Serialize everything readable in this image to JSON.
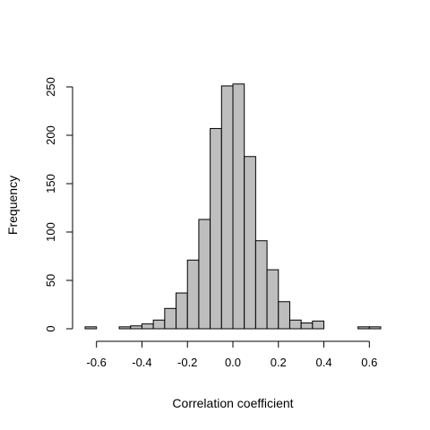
{
  "chart_data": {
    "type": "histogram",
    "title": "",
    "xlabel": "Correlation coefficient",
    "ylabel": "Frequency",
    "bin_width": 0.05,
    "bins": [
      {
        "start": -0.65,
        "end": -0.6,
        "count": 2
      },
      {
        "start": -0.6,
        "end": -0.55,
        "count": 0
      },
      {
        "start": -0.55,
        "end": -0.5,
        "count": 0
      },
      {
        "start": -0.5,
        "end": -0.45,
        "count": 2
      },
      {
        "start": -0.45,
        "end": -0.4,
        "count": 3
      },
      {
        "start": -0.4,
        "end": -0.35,
        "count": 5
      },
      {
        "start": -0.35,
        "end": -0.3,
        "count": 9
      },
      {
        "start": -0.3,
        "end": -0.25,
        "count": 21
      },
      {
        "start": -0.25,
        "end": -0.2,
        "count": 37
      },
      {
        "start": -0.2,
        "end": -0.15,
        "count": 71
      },
      {
        "start": -0.15,
        "end": -0.1,
        "count": 113
      },
      {
        "start": -0.1,
        "end": -0.05,
        "count": 207
      },
      {
        "start": -0.05,
        "end": 0.0,
        "count": 251
      },
      {
        "start": 0.0,
        "end": 0.05,
        "count": 253
      },
      {
        "start": 0.05,
        "end": 0.1,
        "count": 178
      },
      {
        "start": 0.1,
        "end": 0.15,
        "count": 91
      },
      {
        "start": 0.15,
        "end": 0.2,
        "count": 61
      },
      {
        "start": 0.2,
        "end": 0.25,
        "count": 28
      },
      {
        "start": 0.25,
        "end": 0.3,
        "count": 9
      },
      {
        "start": 0.3,
        "end": 0.35,
        "count": 6
      },
      {
        "start": 0.35,
        "end": 0.4,
        "count": 8
      },
      {
        "start": 0.4,
        "end": 0.45,
        "count": 0
      },
      {
        "start": 0.45,
        "end": 0.5,
        "count": 0
      },
      {
        "start": 0.5,
        "end": 0.55,
        "count": 0
      },
      {
        "start": 0.55,
        "end": 0.6,
        "count": 2
      },
      {
        "start": 0.6,
        "end": 0.65,
        "count": 2
      }
    ],
    "xlim": [
      -0.65,
      0.65
    ],
    "ylim": [
      0,
      250
    ],
    "x_ticks": [
      -0.6,
      -0.4,
      -0.2,
      0.0,
      0.2,
      0.4,
      0.6
    ],
    "x_tick_labels": [
      "-0.6",
      "-0.4",
      "-0.2",
      "0.0",
      "0.2",
      "0.4",
      "0.6"
    ],
    "y_ticks": [
      0,
      50,
      100,
      150,
      200,
      250
    ],
    "y_tick_labels": [
      "0",
      "50",
      "100",
      "150",
      "200",
      "250"
    ],
    "grid": false,
    "legend": "none",
    "colors": {
      "bar_fill": "#bebebe",
      "bar_stroke": "#000000",
      "axis": "#000000"
    }
  }
}
